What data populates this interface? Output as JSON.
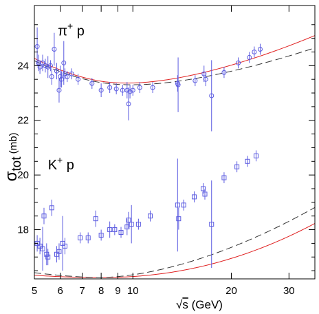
{
  "chart_data": {
    "type": "scatter",
    "xscale": "log",
    "xlim": [
      5,
      36
    ],
    "ylim": [
      16.2,
      26.2
    ],
    "xticks_major": [
      5,
      6,
      7,
      8,
      9,
      10,
      20,
      30
    ],
    "xticks_minor": [
      40
    ],
    "yticks_major": [
      18,
      20,
      22,
      24
    ],
    "xlabel": {
      "radical": "√",
      "var": "s",
      "units": "(GeV)"
    },
    "ylabel": {
      "symbol": "σ",
      "subscript": "tot",
      "units": "(mb)"
    },
    "annotations": [
      {
        "base": "π",
        "sup": "+",
        "rest": " p",
        "x": 5.9,
        "y": 25.1
      },
      {
        "base": "K",
        "sup": "+",
        "rest": " p",
        "x": 5.5,
        "y": 20.2
      }
    ],
    "colors": {
      "points": "#5a5ae0",
      "fit_red": "#e02020",
      "fit_black": "#333333"
    },
    "series": [
      {
        "marker": "circle",
        "points": [
          [
            5.1,
            24.7,
            0.7
          ],
          [
            5.15,
            24.1,
            0.3
          ],
          [
            5.2,
            23.95,
            0.25
          ],
          [
            5.3,
            24.1,
            0.3
          ],
          [
            5.4,
            24.0,
            0.25
          ],
          [
            5.5,
            23.95,
            0.4
          ],
          [
            5.6,
            24.0,
            0.2
          ],
          [
            5.65,
            23.6,
            0.3
          ],
          [
            5.75,
            24.6,
            0.6
          ],
          [
            5.85,
            23.8,
            0.3
          ],
          [
            5.95,
            23.1,
            0.45
          ],
          [
            6.0,
            23.6,
            0.4
          ],
          [
            6.05,
            23.5,
            0.3
          ],
          [
            6.15,
            24.1,
            0.8
          ],
          [
            6.2,
            23.7,
            0.2
          ],
          [
            6.3,
            23.6,
            0.2
          ],
          [
            6.5,
            23.7,
            0.2
          ],
          [
            6.8,
            23.5,
            0.2
          ],
          [
            7.5,
            23.35,
            0.2
          ],
          [
            8.0,
            23.1,
            0.25
          ],
          [
            8.5,
            23.2,
            0.2
          ],
          [
            8.9,
            23.15,
            0.2
          ],
          [
            9.3,
            23.1,
            0.2
          ],
          [
            9.6,
            23.1,
            0.3
          ],
          [
            9.7,
            22.6,
            0.6
          ],
          [
            9.8,
            23.05,
            0.25
          ],
          [
            10.0,
            23.1,
            0.2
          ],
          [
            10.5,
            23.2,
            0.2
          ],
          [
            11.5,
            23.2,
            0.2
          ],
          [
            13.7,
            23.35,
            0.3
          ],
          [
            13.75,
            23.3,
            1.0
          ],
          [
            15.5,
            23.45,
            0.2
          ],
          [
            16.5,
            23.7,
            0.3
          ],
          [
            16.7,
            23.5,
            0.25
          ],
          [
            17.4,
            22.9,
            1.3
          ],
          [
            19.0,
            23.75,
            0.2
          ],
          [
            21.0,
            24.1,
            0.2
          ],
          [
            22.7,
            24.3,
            0.2
          ],
          [
            23.5,
            24.5,
            0.2
          ],
          [
            24.5,
            24.6,
            0.2
          ]
        ]
      },
      {
        "marker": "square",
        "points": [
          [
            5.1,
            17.5,
            0.3
          ],
          [
            5.2,
            17.4,
            0.3
          ],
          [
            5.3,
            17.3,
            0.8
          ],
          [
            5.35,
            18.5,
            0.3
          ],
          [
            5.45,
            17.1,
            0.4
          ],
          [
            5.5,
            17.0,
            0.3
          ],
          [
            5.65,
            18.8,
            0.3
          ],
          [
            5.85,
            17.1,
            0.3
          ],
          [
            5.95,
            17.2,
            0.3
          ],
          [
            6.1,
            17.5,
            1.0
          ],
          [
            6.2,
            17.4,
            0.3
          ],
          [
            6.9,
            17.7,
            0.2
          ],
          [
            7.3,
            17.7,
            0.2
          ],
          [
            7.7,
            18.4,
            0.3
          ],
          [
            8.0,
            17.8,
            0.2
          ],
          [
            8.5,
            18.0,
            0.3
          ],
          [
            8.8,
            18.0,
            0.2
          ],
          [
            9.2,
            17.9,
            0.2
          ],
          [
            9.6,
            18.1,
            0.3
          ],
          [
            9.7,
            18.35,
            0.3
          ],
          [
            9.9,
            18.2,
            0.7
          ],
          [
            10.4,
            18.2,
            0.2
          ],
          [
            11.3,
            18.5,
            0.2
          ],
          [
            13.7,
            18.9,
            1.7
          ],
          [
            13.8,
            18.4,
            0.4
          ],
          [
            14.3,
            18.9,
            0.2
          ],
          [
            15.4,
            19.2,
            0.2
          ],
          [
            16.4,
            19.5,
            0.2
          ],
          [
            16.6,
            19.3,
            0.2
          ],
          [
            17.4,
            18.2,
            1.6
          ],
          [
            19.0,
            19.9,
            0.2
          ],
          [
            20.8,
            20.3,
            0.2
          ],
          [
            22.4,
            20.5,
            0.2
          ],
          [
            23.8,
            20.7,
            0.2
          ]
        ]
      }
    ],
    "fits": [
      {
        "color": "red",
        "a": 23.2,
        "b": 0.95,
        "c": 8.7,
        "p": 1.7,
        "q": 0.65
      },
      {
        "color": "black",
        "dash": true,
        "a": 23.15,
        "b": 0.75,
        "c": 8.7,
        "p": 1.7,
        "q": 0.65
      },
      {
        "color": "red",
        "a": 16.25,
        "b": 0.84,
        "c": 0,
        "p": 2.1,
        "q": 0.5
      },
      {
        "color": "black",
        "dash": true,
        "a": 16.25,
        "b": 1.28,
        "c": 0,
        "p": 1.7,
        "q": 0.5
      }
    ]
  }
}
